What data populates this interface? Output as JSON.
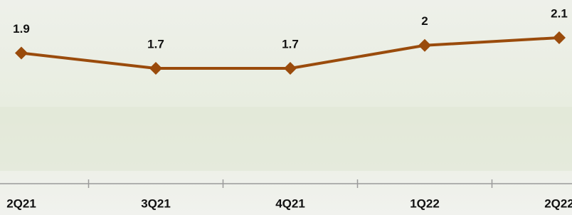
{
  "chart_data": {
    "type": "line",
    "categories": [
      "2Q21",
      "3Q21",
      "4Q21",
      "1Q22",
      "2Q22"
    ],
    "series": [
      {
        "values": [
          1.9,
          1.7,
          1.7,
          2.0,
          2.1
        ],
        "color": "#9a4b0c"
      }
    ]
  }
}
